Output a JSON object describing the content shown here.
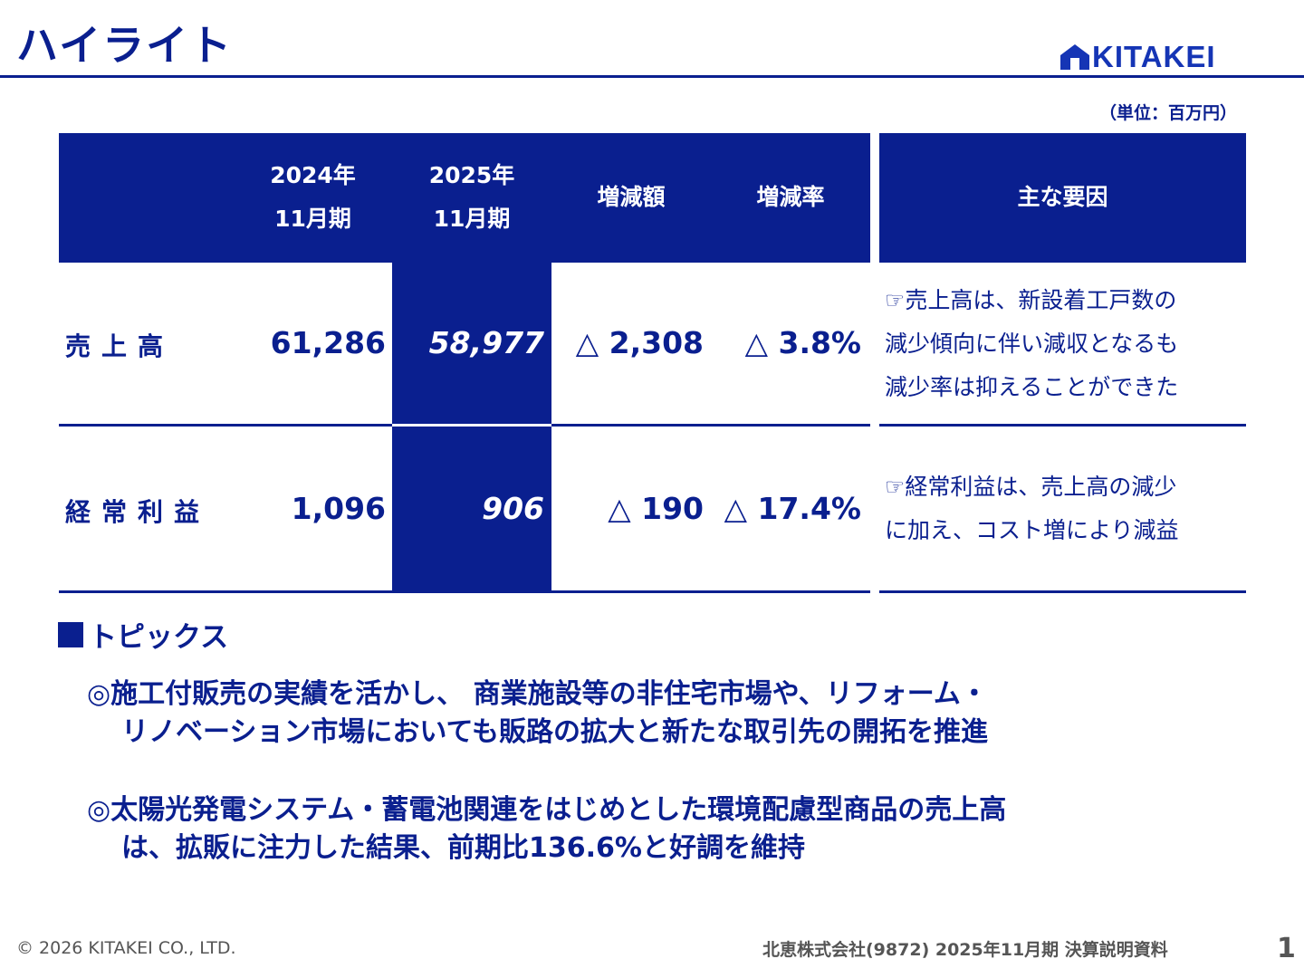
{
  "title": "ハイライト",
  "logo": {
    "text": "KITAKEI"
  },
  "unit_note": "（単位：百万円）",
  "table": {
    "headers": {
      "prev_year": "2024年",
      "prev_period": "11月期",
      "curr_year": "2025年",
      "curr_period": "11月期",
      "change_amount": "増減額",
      "change_rate": "増減率",
      "main_factors": "主な要因"
    },
    "rows": [
      {
        "label": "売上高",
        "prev": "61,286",
        "curr": "58,977",
        "change_amount": "△ 2,308",
        "change_rate": "△ 3.8%",
        "reason": [
          "☞売上高は、新設着工戸数の",
          "減少傾向に伴い減収となるも",
          "減少率は抑えることができた"
        ]
      },
      {
        "label": "経常利益",
        "prev": "1,096",
        "curr": "906",
        "change_amount": "△ 190",
        "change_rate": "△ 17.4%",
        "reason": [
          "☞経常利益は、売上高の減少",
          "に加え、コスト増により減益"
        ]
      }
    ]
  },
  "topics": {
    "heading": "トピックス",
    "items": [
      [
        "◎施工付販売の実績を活かし、 商業施設等の非住宅市場や、リフォーム・",
        "リノベーション市場においても販路の拡大と新たな取引先の開拓を推進"
      ],
      [
        "◎太陽光発電システム・蓄電池関連をはじめとした環境配慮型商品の売上高",
        "は、拡販に注力した結果、前期比136.6%と好調を維持"
      ]
    ]
  },
  "footer": {
    "copyright": "© 2026 KITAKEI CO., LTD.",
    "document": "北恵株式会社(9872) 2025年11月期 決算説明資料",
    "page": "1"
  },
  "colors": {
    "primary": "#0a1f8f",
    "logo": "#1535b5",
    "footer_text": "#555555"
  }
}
